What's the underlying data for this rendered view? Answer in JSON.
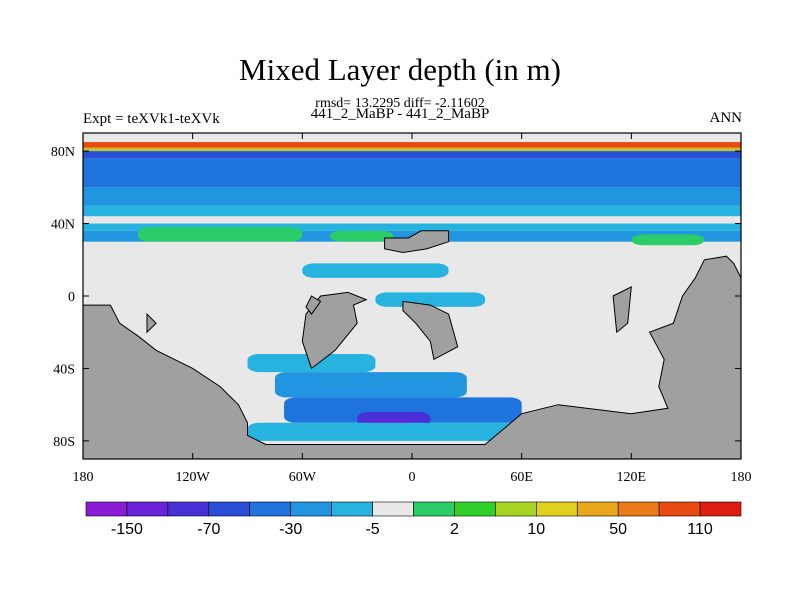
{
  "header": {
    "title": "Mixed Layer depth (in m)",
    "stats": "rmsd= 13.2295 diff= -2.11602",
    "subtitle": "441_2_MaBP - 441_2_MaBP",
    "left_label": "Expt = teXVk1-teXVk",
    "right_label": "ANN"
  },
  "colors": {
    "land": "#a0a0a0",
    "neutral": "#e8e8e8",
    "palette": [
      "#8a1cd6",
      "#6a23d6",
      "#4630d6",
      "#2a4fd6",
      "#1f73dc",
      "#2295e0",
      "#27b3df",
      "#e8e8e8",
      "#29cc66",
      "#30d02a",
      "#a8d424",
      "#e0d020",
      "#e9a81c",
      "#eb7a17",
      "#e84a12",
      "#de1c10"
    ]
  },
  "chart_data": {
    "type": "heatmap",
    "title": "Mixed Layer depth (in m)",
    "xlabel": "",
    "ylabel": "",
    "x_range": [
      -180,
      180
    ],
    "y_range": [
      -90,
      90
    ],
    "x_ticks": [
      {
        "value": -180,
        "label": "180"
      },
      {
        "value": -120,
        "label": "120W"
      },
      {
        "value": -60,
        "label": "60W"
      },
      {
        "value": 0,
        "label": "0"
      },
      {
        "value": 60,
        "label": "60E"
      },
      {
        "value": 120,
        "label": "120E"
      },
      {
        "value": 180,
        "label": "180"
      }
    ],
    "y_ticks": [
      {
        "value": 80,
        "label": "80N"
      },
      {
        "value": 40,
        "label": "40N"
      },
      {
        "value": 0,
        "label": "0"
      },
      {
        "value": -40,
        "label": "40S"
      },
      {
        "value": -80,
        "label": "80S"
      }
    ],
    "colorbar_labels": [
      {
        "after_index": 0,
        "label": "-150"
      },
      {
        "after_index": 2,
        "label": "-70"
      },
      {
        "after_index": 4,
        "label": "-30"
      },
      {
        "after_index": 6,
        "label": "-5"
      },
      {
        "after_index": 8,
        "label": "2"
      },
      {
        "after_index": 10,
        "label": "10"
      },
      {
        "after_index": 12,
        "label": "50"
      },
      {
        "after_index": 14,
        "label": "110"
      }
    ],
    "bands": [
      {
        "lat": [
          82,
          85
        ],
        "level": 14
      },
      {
        "lat": [
          81,
          82
        ],
        "level": 12
      },
      {
        "lat": [
          80,
          81
        ],
        "level": 10
      },
      {
        "lat": [
          76,
          80
        ],
        "level": 3
      },
      {
        "lat": [
          60,
          76
        ],
        "level": 4
      },
      {
        "lat": [
          50,
          60
        ],
        "level": 5
      },
      {
        "lat": [
          44,
          50
        ],
        "level": 6
      },
      {
        "lat": [
          40,
          44
        ],
        "level": 7
      },
      {
        "lat": [
          36,
          40
        ],
        "level": 6
      },
      {
        "lat": [
          30,
          36
        ],
        "level": 5
      }
    ],
    "patches": [
      {
        "lon": [
          -150,
          -60
        ],
        "lat": [
          30,
          38
        ],
        "level": 8
      },
      {
        "lon": [
          -45,
          -10
        ],
        "lat": [
          30,
          36
        ],
        "level": 8
      },
      {
        "lon": [
          120,
          160
        ],
        "lat": [
          28,
          34
        ],
        "level": 8
      },
      {
        "lon": [
          -60,
          20
        ],
        "lat": [
          10,
          18
        ],
        "level": 6
      },
      {
        "lon": [
          -20,
          40
        ],
        "lat": [
          -6,
          2
        ],
        "level": 6
      },
      {
        "lon": [
          -90,
          -20
        ],
        "lat": [
          -42,
          -32
        ],
        "level": 6
      },
      {
        "lon": [
          -75,
          30
        ],
        "lat": [
          -56,
          -42
        ],
        "level": 5
      },
      {
        "lon": [
          -70,
          60
        ],
        "lat": [
          -70,
          -56
        ],
        "level": 4
      },
      {
        "lon": [
          -30,
          10
        ],
        "lat": [
          -72,
          -64
        ],
        "level": 2
      },
      {
        "lon": [
          -25,
          0
        ],
        "lat": [
          -72,
          -68
        ],
        "level": 1
      },
      {
        "lon": [
          -90,
          80
        ],
        "lat": [
          -80,
          -70
        ],
        "level": 6
      }
    ],
    "land": [
      [
        [
          -180,
          -5
        ],
        [
          -165,
          -5
        ],
        [
          -160,
          -15
        ],
        [
          -150,
          -22
        ],
        [
          -140,
          -30
        ],
        [
          -120,
          -40
        ],
        [
          -105,
          -50
        ],
        [
          -95,
          -60
        ],
        [
          -90,
          -70
        ],
        [
          -90,
          -77
        ],
        [
          -80,
          -82
        ],
        [
          -40,
          -82
        ],
        [
          40,
          -82
        ],
        [
          60,
          -65
        ],
        [
          80,
          -60
        ],
        [
          120,
          -65
        ],
        [
          140,
          -62
        ],
        [
          135,
          -50
        ],
        [
          138,
          -35
        ],
        [
          130,
          -20
        ],
        [
          143,
          -15
        ],
        [
          148,
          0
        ],
        [
          155,
          10
        ],
        [
          160,
          20
        ],
        [
          172,
          22
        ],
        [
          176,
          18
        ],
        [
          180,
          10
        ],
        [
          180,
          -90
        ],
        [
          -180,
          -90
        ]
      ],
      [
        [
          -15,
          32
        ],
        [
          -2,
          32
        ],
        [
          5,
          36
        ],
        [
          20,
          36
        ],
        [
          20,
          30
        ],
        [
          8,
          26
        ],
        [
          -5,
          24
        ],
        [
          -15,
          26
        ]
      ],
      [
        [
          -55,
          -40
        ],
        [
          -42,
          -30
        ],
        [
          -30,
          -15
        ],
        [
          -32,
          -5
        ],
        [
          -25,
          -2
        ],
        [
          -35,
          2
        ],
        [
          -50,
          0
        ],
        [
          -58,
          -10
        ],
        [
          -60,
          -25
        ]
      ],
      [
        [
          -55,
          0
        ],
        [
          -50,
          -3
        ],
        [
          -55,
          -10
        ],
        [
          -58,
          -6
        ]
      ],
      [
        [
          -5,
          -3
        ],
        [
          10,
          -5
        ],
        [
          20,
          -10
        ],
        [
          25,
          -28
        ],
        [
          12,
          -35
        ],
        [
          10,
          -25
        ],
        [
          2,
          -15
        ],
        [
          -5,
          -8
        ]
      ],
      [
        [
          110,
          0
        ],
        [
          120,
          5
        ],
        [
          118,
          -15
        ],
        [
          112,
          -20
        ]
      ],
      [
        [
          -145,
          -10
        ],
        [
          -140,
          -15
        ],
        [
          -145,
          -20
        ]
      ]
    ]
  }
}
